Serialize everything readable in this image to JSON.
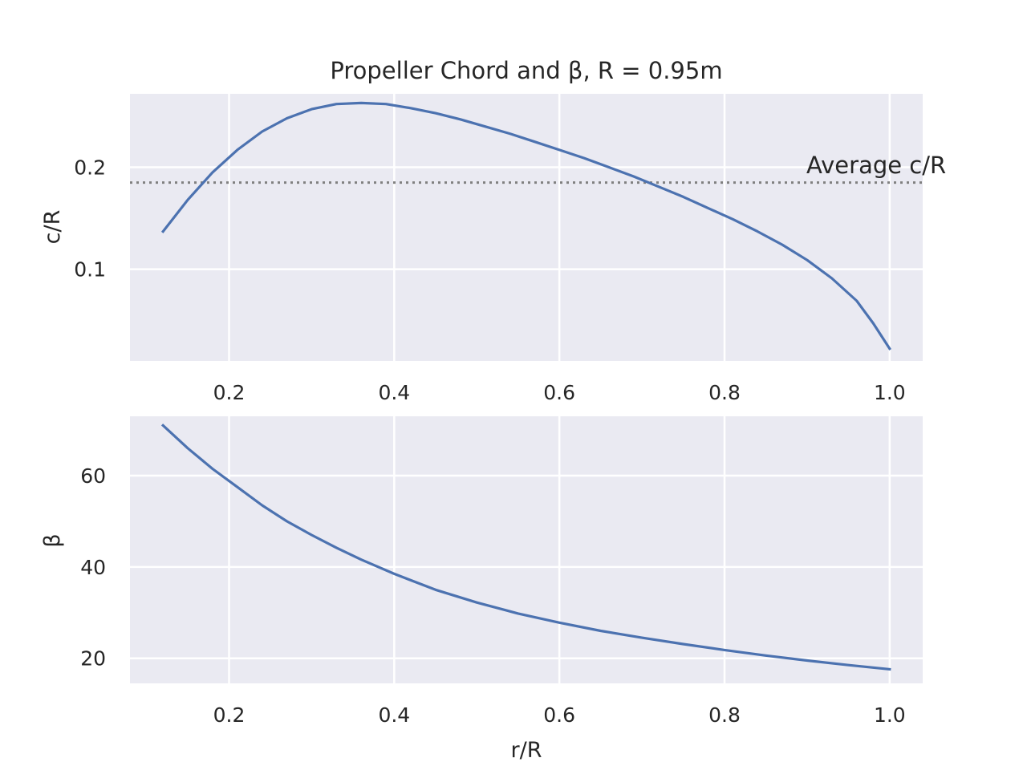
{
  "chart_data": [
    {
      "type": "line",
      "title": "Propeller Chord and β, R = 0.95m",
      "xlabel": "",
      "ylabel": "c/R",
      "xlim": [
        0.08,
        1.04
      ],
      "ylim": [
        0.01,
        0.272
      ],
      "xticks": [
        "0.2",
        "0.4",
        "0.6",
        "0.8",
        "1.0"
      ],
      "yticks": [
        "0.1",
        "0.2"
      ],
      "grid": true,
      "series": [
        {
          "color": "#4c72b0",
          "x": [
            0.12,
            0.15,
            0.18,
            0.21,
            0.24,
            0.27,
            0.3,
            0.33,
            0.36,
            0.39,
            0.42,
            0.45,
            0.48,
            0.51,
            0.54,
            0.57,
            0.6,
            0.63,
            0.66,
            0.69,
            0.72,
            0.75,
            0.78,
            0.81,
            0.84,
            0.87,
            0.9,
            0.93,
            0.96,
            0.98,
            1.0
          ],
          "y": [
            0.137,
            0.168,
            0.195,
            0.217,
            0.235,
            0.248,
            0.257,
            0.262,
            0.263,
            0.262,
            0.258,
            0.253,
            0.247,
            0.24,
            0.233,
            0.225,
            0.217,
            0.209,
            0.2,
            0.191,
            0.181,
            0.171,
            0.16,
            0.149,
            0.137,
            0.124,
            0.109,
            0.091,
            0.069,
            0.047,
            0.022
          ]
        }
      ],
      "reference_line": {
        "y": 0.185,
        "label": "Average c/R",
        "color": "#808080",
        "style": "dotted"
      }
    },
    {
      "type": "line",
      "title": "",
      "xlabel": "r/R",
      "ylabel": "β",
      "xlim": [
        0.08,
        1.04
      ],
      "ylim": [
        14.5,
        73
      ],
      "xticks": [
        "0.2",
        "0.4",
        "0.6",
        "0.8",
        "1.0"
      ],
      "yticks": [
        "20",
        "40",
        "60"
      ],
      "grid": true,
      "series": [
        {
          "color": "#4c72b0",
          "x": [
            0.12,
            0.15,
            0.18,
            0.21,
            0.24,
            0.27,
            0.3,
            0.33,
            0.36,
            0.4,
            0.45,
            0.5,
            0.55,
            0.6,
            0.65,
            0.7,
            0.75,
            0.8,
            0.85,
            0.9,
            0.95,
            1.0
          ],
          "y": [
            71.0,
            66.0,
            61.5,
            57.5,
            53.5,
            50.0,
            47.0,
            44.2,
            41.6,
            38.5,
            35.0,
            32.2,
            29.8,
            27.8,
            26.0,
            24.5,
            23.1,
            21.8,
            20.6,
            19.5,
            18.5,
            17.6
          ]
        }
      ]
    }
  ]
}
